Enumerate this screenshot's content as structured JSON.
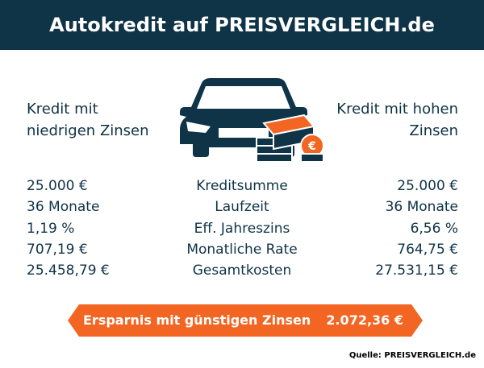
{
  "header": {
    "title": "Autokredit auf PREISVERGLEICH.de"
  },
  "columns": {
    "left": "Kredit mit niedrigen Zinsen",
    "right": "Kredit mit hohen Zinsen"
  },
  "table": {
    "rows": [
      [
        "25.000 €",
        "Kreditsumme",
        "25.000 €"
      ],
      [
        "36 Monate",
        "Laufzeit",
        "36 Monate"
      ],
      [
        "1,19 %",
        "Eff. Jahreszins",
        "6,56 %"
      ],
      [
        "707,19 €",
        "Monatliche Rate",
        "764,75 €"
      ],
      [
        "25.458,79 €",
        "Gesamtkosten",
        "27.531,15 €"
      ]
    ]
  },
  "savings": {
    "label": "Ersparnis mit günstigen Zinsen",
    "value": "2.072,36 €"
  },
  "source": "Quelle: PREISVERGLEICH.de"
}
